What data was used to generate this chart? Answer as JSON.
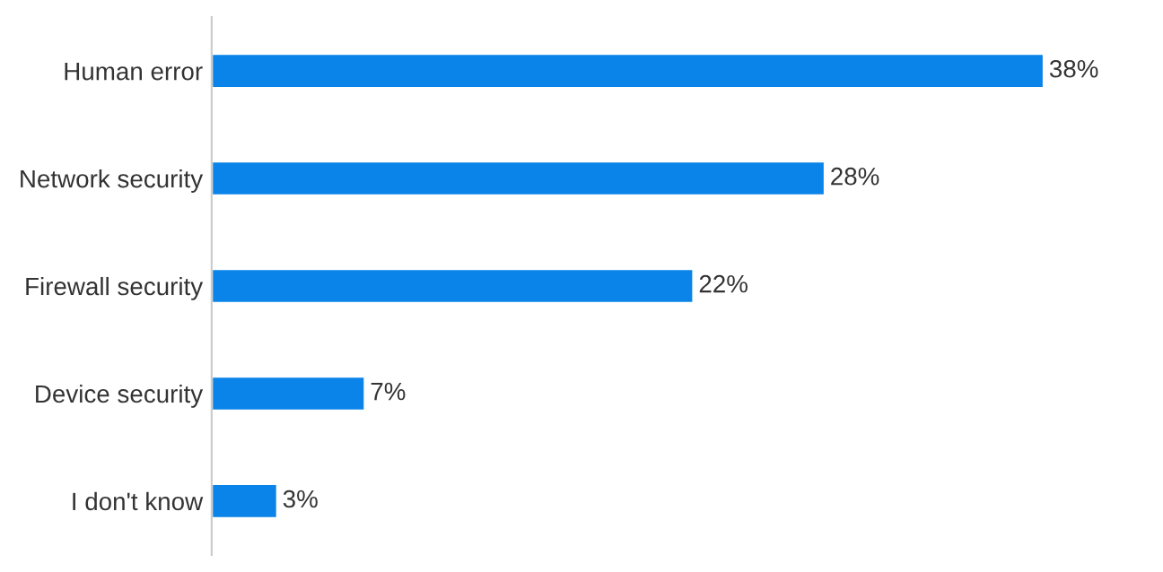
{
  "chart_data": {
    "type": "bar",
    "orientation": "horizontal",
    "categories": [
      "Human error",
      "Network security",
      "Firewall security",
      "Device security",
      "I don't know"
    ],
    "values": [
      38,
      28,
      22,
      7,
      3
    ],
    "value_labels": [
      "38%",
      "28%",
      "22%",
      "7%",
      "3%"
    ],
    "color": "#0a84e8",
    "grid": false,
    "legend": false
  }
}
